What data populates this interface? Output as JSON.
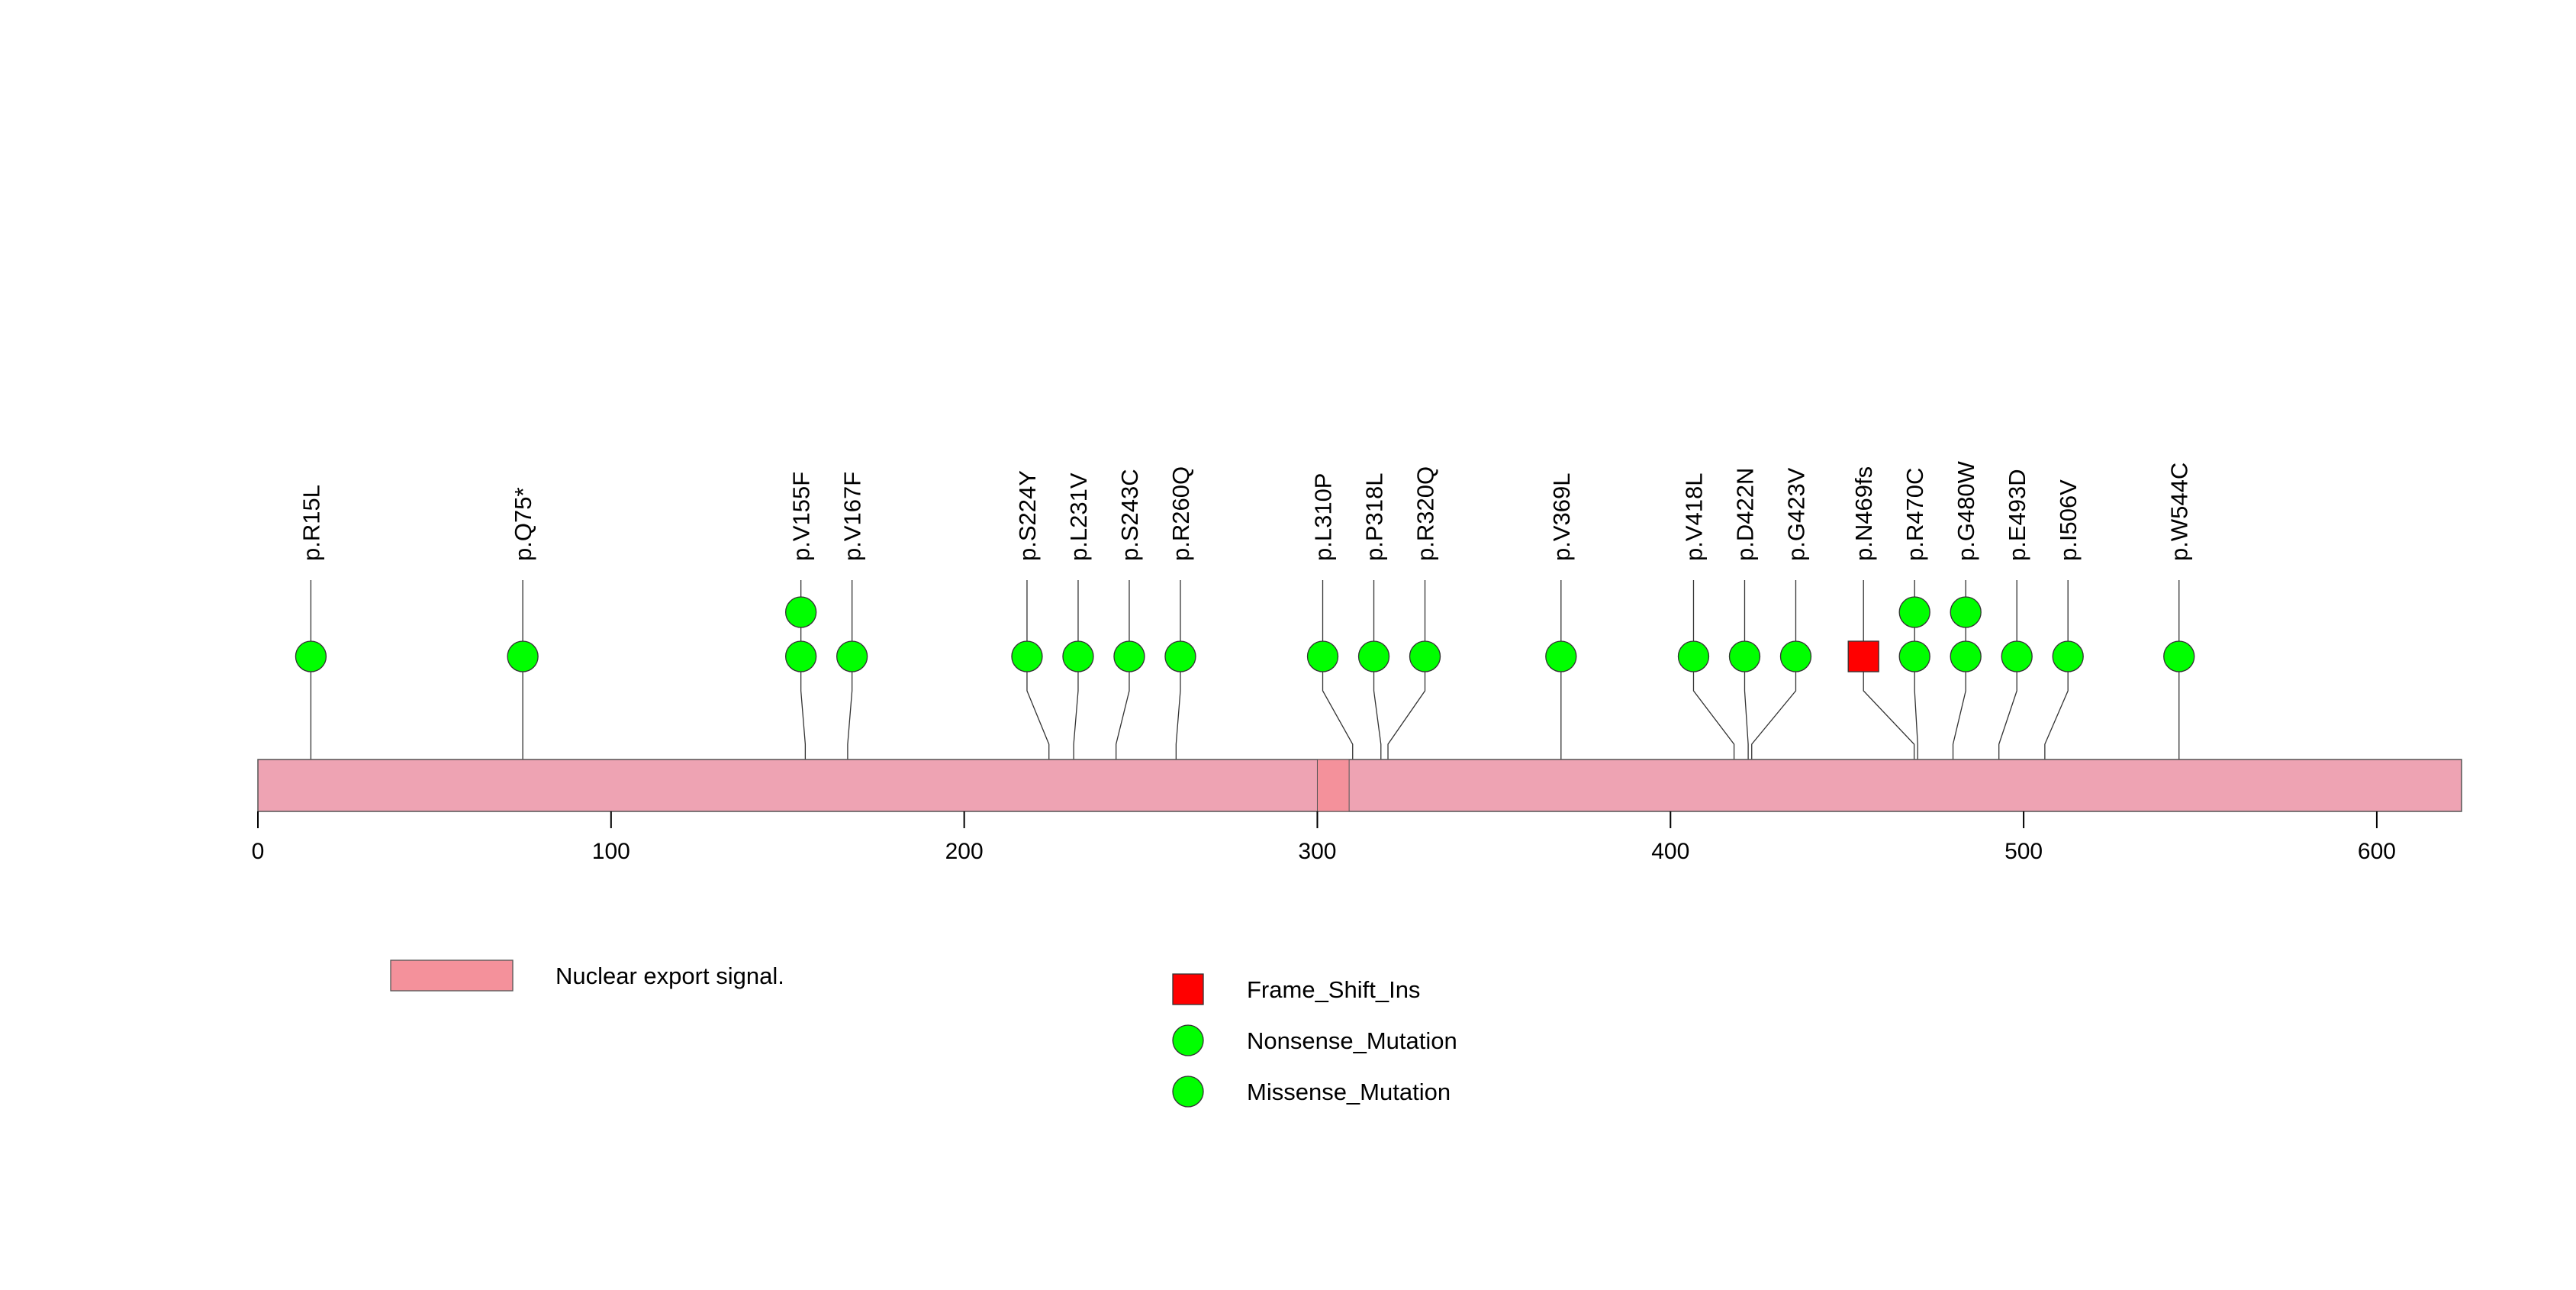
{
  "chart_data": {
    "type": "lollipop",
    "protein_length": 624,
    "axis": {
      "min": 0,
      "max": 624,
      "ticks": [
        0,
        100,
        200,
        300,
        400,
        500,
        600
      ]
    },
    "domains": [
      {
        "name": "Nuclear export signal.",
        "start": 300,
        "end": 309
      }
    ],
    "mutations": [
      {
        "label": "p.R15L",
        "pos": 15,
        "count": 1,
        "type": "Missense_Mutation"
      },
      {
        "label": "p.Q75*",
        "pos": 75,
        "count": 1,
        "type": "Nonsense_Mutation"
      },
      {
        "label": "p.V155F",
        "pos": 155,
        "count": 2,
        "type": "Missense_Mutation"
      },
      {
        "label": "p.V167F",
        "pos": 167,
        "count": 1,
        "type": "Missense_Mutation"
      },
      {
        "label": "p.S224Y",
        "pos": 224,
        "count": 1,
        "type": "Missense_Mutation"
      },
      {
        "label": "p.L231V",
        "pos": 231,
        "count": 1,
        "type": "Missense_Mutation"
      },
      {
        "label": "p.S243C",
        "pos": 243,
        "count": 1,
        "type": "Missense_Mutation"
      },
      {
        "label": "p.R260Q",
        "pos": 260,
        "count": 1,
        "type": "Missense_Mutation"
      },
      {
        "label": "p.L310P",
        "pos": 310,
        "count": 1,
        "type": "Missense_Mutation"
      },
      {
        "label": "p.P318L",
        "pos": 318,
        "count": 1,
        "type": "Missense_Mutation"
      },
      {
        "label": "p.R320Q",
        "pos": 320,
        "count": 1,
        "type": "Missense_Mutation"
      },
      {
        "label": "p.V369L",
        "pos": 369,
        "count": 1,
        "type": "Missense_Mutation"
      },
      {
        "label": "p.V418L",
        "pos": 418,
        "count": 1,
        "type": "Missense_Mutation"
      },
      {
        "label": "p.D422N",
        "pos": 422,
        "count": 1,
        "type": "Missense_Mutation"
      },
      {
        "label": "p.G423V",
        "pos": 423,
        "count": 1,
        "type": "Missense_Mutation"
      },
      {
        "label": "p.N469fs",
        "pos": 469,
        "count": 1,
        "type": "Frame_Shift_Ins"
      },
      {
        "label": "p.R470C",
        "pos": 470,
        "count": 2,
        "type": "Missense_Mutation"
      },
      {
        "label": "p.G480W",
        "pos": 480,
        "count": 2,
        "type": "Missense_Mutation"
      },
      {
        "label": "p.E493D",
        "pos": 493,
        "count": 1,
        "type": "Missense_Mutation"
      },
      {
        "label": "p.I506V",
        "pos": 506,
        "count": 1,
        "type": "Missense_Mutation"
      },
      {
        "label": "p.W544C",
        "pos": 544,
        "count": 1,
        "type": "Missense_Mutation"
      }
    ],
    "legend": {
      "domains": [
        {
          "label": "Nuclear export signal.",
          "color": "#f4919b"
        }
      ],
      "mutation_types": [
        {
          "label": "Frame_Shift_Ins",
          "shape": "square",
          "color": "#ff0000"
        },
        {
          "label": "Nonsense_Mutation",
          "shape": "circle",
          "color": "#00ff00"
        },
        {
          "label": "Missense_Mutation",
          "shape": "circle",
          "color": "#00ff00"
        }
      ]
    },
    "colors": {
      "protein_bar": "#eea3b3",
      "domain": "#f4919b",
      "frame_shift": "#ff0000",
      "point": "#00ff00",
      "line": "#000000"
    }
  }
}
